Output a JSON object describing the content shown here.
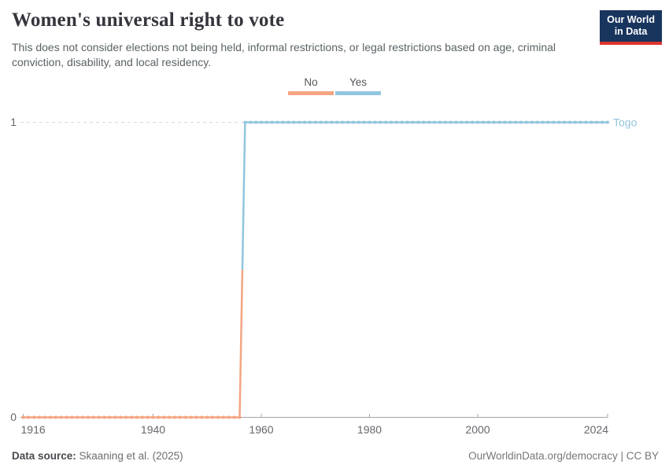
{
  "header": {
    "title": "Women's universal right to vote",
    "subtitle": "This does not consider elections not being held, informal restrictions, or legal restrictions based on age, criminal conviction, disability, and local residency.",
    "logo_line1": "Our World",
    "logo_line2": "in Data"
  },
  "colors": {
    "no": "#F4A582",
    "yes": "#92C5DE",
    "logo_navy": "#18355E",
    "logo_red": "#DC352C",
    "grid": "#D9D9D9",
    "axis": "#A5A5A5",
    "tick_text": "#67676D"
  },
  "legend": {
    "items": [
      {
        "label": "No",
        "color": "#F4A582"
      },
      {
        "label": "Yes",
        "color": "#92C5DE"
      }
    ]
  },
  "chart_data": {
    "type": "line",
    "title": "Women's universal right to vote",
    "entity": "Togo",
    "end_label": "Togo",
    "x_range": [
      1916,
      2024
    ],
    "x_ticks": [
      1916,
      1940,
      1960,
      1980,
      2000,
      2024
    ],
    "y_ticks": [
      0,
      1
    ],
    "ylim": [
      0,
      1
    ],
    "grid": "dashed line at y=1 only, solid axis at y=0",
    "legend_position": "top-center",
    "series": [
      {
        "name": "No",
        "value": 0,
        "start_year": 1916,
        "end_year": 1956,
        "color": "#F4A582"
      },
      {
        "name": "Yes",
        "value": 1,
        "start_year": 1957,
        "end_year": 2024,
        "color": "#92C5DE"
      }
    ],
    "note": "Step from 0 (No) to 1 (Yes) between 1956 and 1957; one data point marker per year"
  },
  "footer": {
    "datasource_label": "Data source:",
    "datasource_value": " Skaaning et al. (2025)",
    "right_text": "OurWorldinData.org/democracy | CC BY"
  }
}
